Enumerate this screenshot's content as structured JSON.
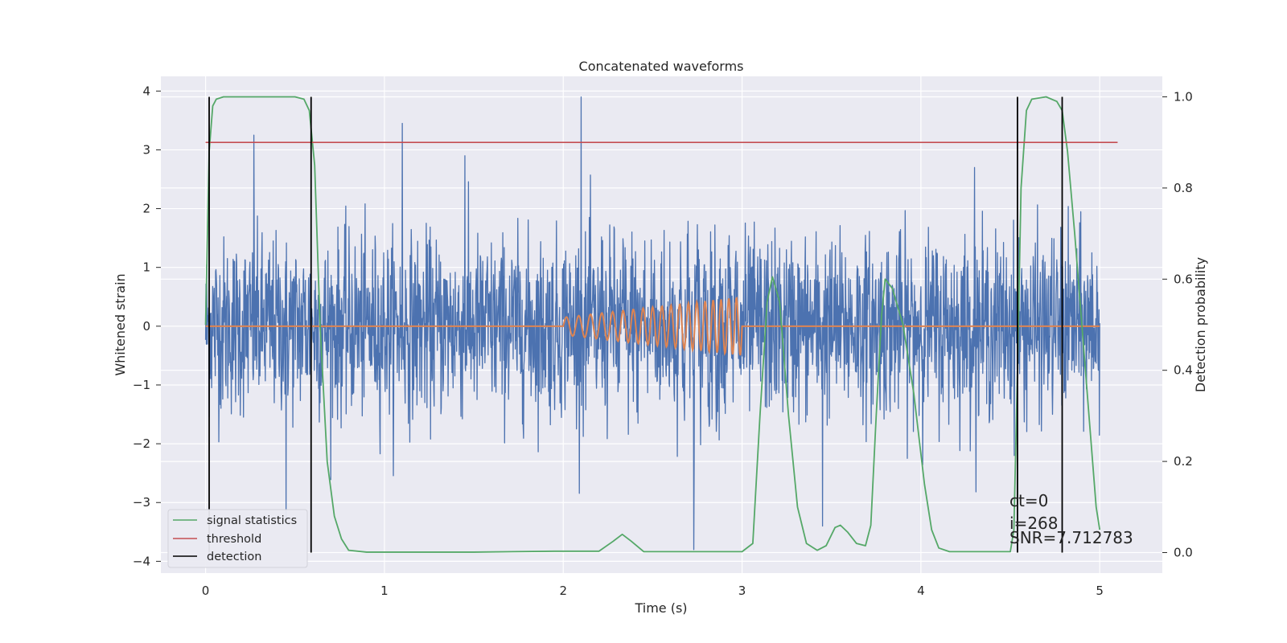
{
  "chart_data": {
    "type": "line",
    "title": "Concatenated waveforms",
    "xlabel": "Time (s)",
    "ylabel": "Whitened strain",
    "ylabel_right": "Detection probability",
    "xlim": [
      -0.25,
      5.35
    ],
    "ylim": [
      -4.2,
      4.25
    ],
    "ylim_right": [
      -0.045,
      1.045
    ],
    "xticks": [
      0,
      1,
      2,
      3,
      4,
      5
    ],
    "yticks": [
      -4,
      -3,
      -2,
      -1,
      0,
      1,
      2,
      3,
      4
    ],
    "yticks_right": [
      0.0,
      0.2,
      0.4,
      0.6,
      0.8,
      1.0
    ],
    "yticks_right_labels": [
      "0.0",
      "0.2",
      "0.4",
      "0.6",
      "0.8",
      "1.0"
    ],
    "grid": true,
    "legend": {
      "position": "lower-left",
      "entries": [
        {
          "label": "signal statistics",
          "color": "#55a868"
        },
        {
          "label": "threshold",
          "color": "#c44e52"
        },
        {
          "label": "detection",
          "color": "#000000"
        }
      ]
    },
    "series": [
      {
        "kind": "noise",
        "axis": "left",
        "color": "#4c72b0",
        "x_range": [
          0,
          5
        ],
        "std": 0.75,
        "spikes": [
          [
            0.27,
            3.25
          ],
          [
            1.1,
            3.45
          ],
          [
            2.1,
            3.9
          ],
          [
            2.73,
            -3.8
          ],
          [
            0.45,
            -3.3
          ],
          [
            3.45,
            -3.4
          ],
          [
            1.45,
            2.9
          ],
          [
            4.3,
            2.7
          ]
        ]
      },
      {
        "kind": "chirp",
        "axis": "left",
        "color": "#dd8452",
        "x_range": [
          0,
          5
        ],
        "chirp_start": 2.0,
        "chirp_end": 3.0,
        "amp_start": 0.15,
        "amp_end": 0.5,
        "freq_start": 14,
        "freq_end": 24
      },
      {
        "name": "signal statistics",
        "axis": "right",
        "color": "#55a868",
        "x": [
          0.0,
          0.02,
          0.04,
          0.06,
          0.1,
          0.5,
          0.55,
          0.58,
          0.61,
          0.64,
          0.68,
          0.72,
          0.76,
          0.8,
          0.9,
          1.5,
          1.95,
          2.2,
          2.28,
          2.33,
          2.38,
          2.45,
          3.0,
          3.06,
          3.1,
          3.14,
          3.17,
          3.21,
          3.26,
          3.31,
          3.36,
          3.42,
          3.47,
          3.52,
          3.55,
          3.59,
          3.64,
          3.69,
          3.72,
          3.75,
          3.78,
          3.8,
          3.84,
          3.9,
          3.96,
          4.02,
          4.06,
          4.1,
          4.16,
          4.5,
          4.52,
          4.54,
          4.56,
          4.59,
          4.62,
          4.7,
          4.76,
          4.79,
          4.82,
          4.86,
          4.92,
          4.98,
          5.0
        ],
        "y": [
          0.5,
          0.88,
          0.98,
          0.995,
          1.0,
          1.0,
          0.995,
          0.97,
          0.85,
          0.5,
          0.2,
          0.08,
          0.03,
          0.005,
          0.001,
          0.001,
          0.003,
          0.003,
          0.025,
          0.04,
          0.025,
          0.002,
          0.002,
          0.02,
          0.3,
          0.55,
          0.605,
          0.55,
          0.3,
          0.1,
          0.02,
          0.005,
          0.015,
          0.055,
          0.06,
          0.045,
          0.02,
          0.015,
          0.06,
          0.3,
          0.52,
          0.6,
          0.58,
          0.5,
          0.35,
          0.15,
          0.05,
          0.01,
          0.002,
          0.002,
          0.05,
          0.4,
          0.8,
          0.97,
          0.995,
          1.0,
          0.99,
          0.97,
          0.88,
          0.7,
          0.4,
          0.1,
          0.05
        ]
      },
      {
        "name": "threshold",
        "axis": "right",
        "color": "#c44e52",
        "x": [
          0.0,
          5.1
        ],
        "y": [
          0.9,
          0.9
        ]
      }
    ],
    "detections": [
      0.02,
      0.59,
      4.54,
      4.79
    ],
    "detection_range": [
      0.0,
      1.0
    ],
    "annotation": {
      "x": 4.5,
      "lines": [
        "ct=0",
        "i=268",
        "SNR=7.712783"
      ]
    }
  }
}
